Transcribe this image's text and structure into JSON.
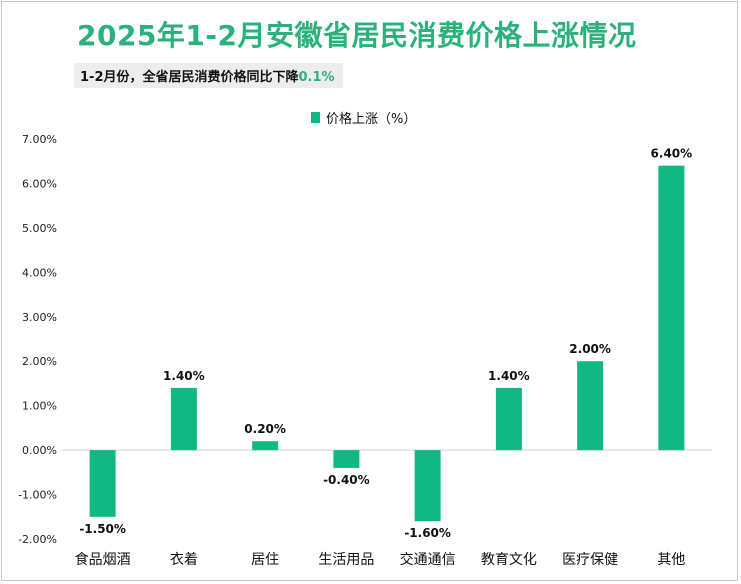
{
  "title": "2025年1-2月安徽省居民消费价格上涨情况",
  "subtitle": {
    "text": "1-2月份，全省居民消费价格同比下降",
    "highlight": "0.1%"
  },
  "colors": {
    "bar": "#10b981",
    "title": "#2bb27c"
  },
  "chart_data": {
    "type": "bar",
    "categories": [
      "食品烟酒",
      "衣着",
      "居住",
      "生活用品",
      "交通通信",
      "教育文化",
      "医疗保健",
      "其他"
    ],
    "series": [
      {
        "name": "价格上涨（%）",
        "values": [
          -1.5,
          1.4,
          0.2,
          -0.4,
          -1.6,
          1.4,
          2.0,
          6.4
        ]
      }
    ],
    "data_labels": [
      "-1.50%",
      "1.40%",
      "0.20%",
      "-0.40%",
      "-1.60%",
      "1.40%",
      "2.00%",
      "6.40%"
    ],
    "ylim": [
      -2,
      7
    ],
    "yticks": [
      -2,
      -1,
      0,
      1,
      2,
      3,
      4,
      5,
      6,
      7
    ],
    "ytick_labels": [
      "-2.00%",
      "-1.00%",
      "0.00%",
      "1.00%",
      "2.00%",
      "3.00%",
      "4.00%",
      "5.00%",
      "6.00%",
      "7.00%"
    ],
    "legend_position": "top"
  }
}
